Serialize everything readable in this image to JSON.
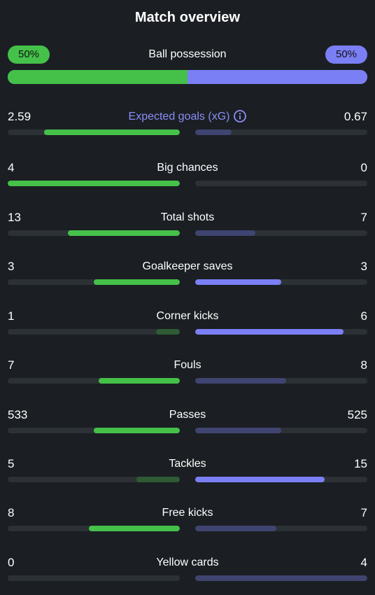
{
  "title": "Match overview",
  "possession": {
    "label": "Ball possession",
    "home": "50%",
    "away": "50%",
    "home_share": 0.5,
    "away_share": 0.5,
    "home_color": "#45c14a",
    "away_color": "#7b7ff5"
  },
  "stats": [
    {
      "label": "Expected goals (xG)",
      "home": "2.59",
      "away": "0.67",
      "accent": true,
      "info_icon": "info-circle-icon",
      "home_share": 0.79,
      "away_share": 0.21,
      "winner": "home"
    },
    {
      "label": "Big chances",
      "home": "4",
      "away": "0",
      "home_share": 1.0,
      "away_share": 0.0,
      "winner": "home"
    },
    {
      "label": "Total shots",
      "home": "13",
      "away": "7",
      "home_share": 0.65,
      "away_share": 0.35,
      "winner": "home"
    },
    {
      "label": "Goalkeeper saves",
      "home": "3",
      "away": "3",
      "home_share": 0.5,
      "away_share": 0.5,
      "winner": "both"
    },
    {
      "label": "Corner kicks",
      "home": "1",
      "away": "6",
      "home_share": 0.14,
      "away_share": 0.86,
      "winner": "away"
    },
    {
      "label": "Fouls",
      "home": "7",
      "away": "8",
      "home_share": 0.47,
      "away_share": 0.53,
      "winner": "home"
    },
    {
      "label": "Passes",
      "home": "533",
      "away": "525",
      "home_share": 0.5,
      "away_share": 0.5,
      "winner": "home"
    },
    {
      "label": "Tackles",
      "home": "5",
      "away": "15",
      "home_share": 0.25,
      "away_share": 0.75,
      "winner": "away"
    },
    {
      "label": "Free kicks",
      "home": "8",
      "away": "7",
      "home_share": 0.53,
      "away_share": 0.47,
      "winner": "home"
    },
    {
      "label": "Yellow cards",
      "home": "0",
      "away": "4",
      "home_share": 0.0,
      "away_share": 1.0,
      "winner": "home"
    }
  ]
}
